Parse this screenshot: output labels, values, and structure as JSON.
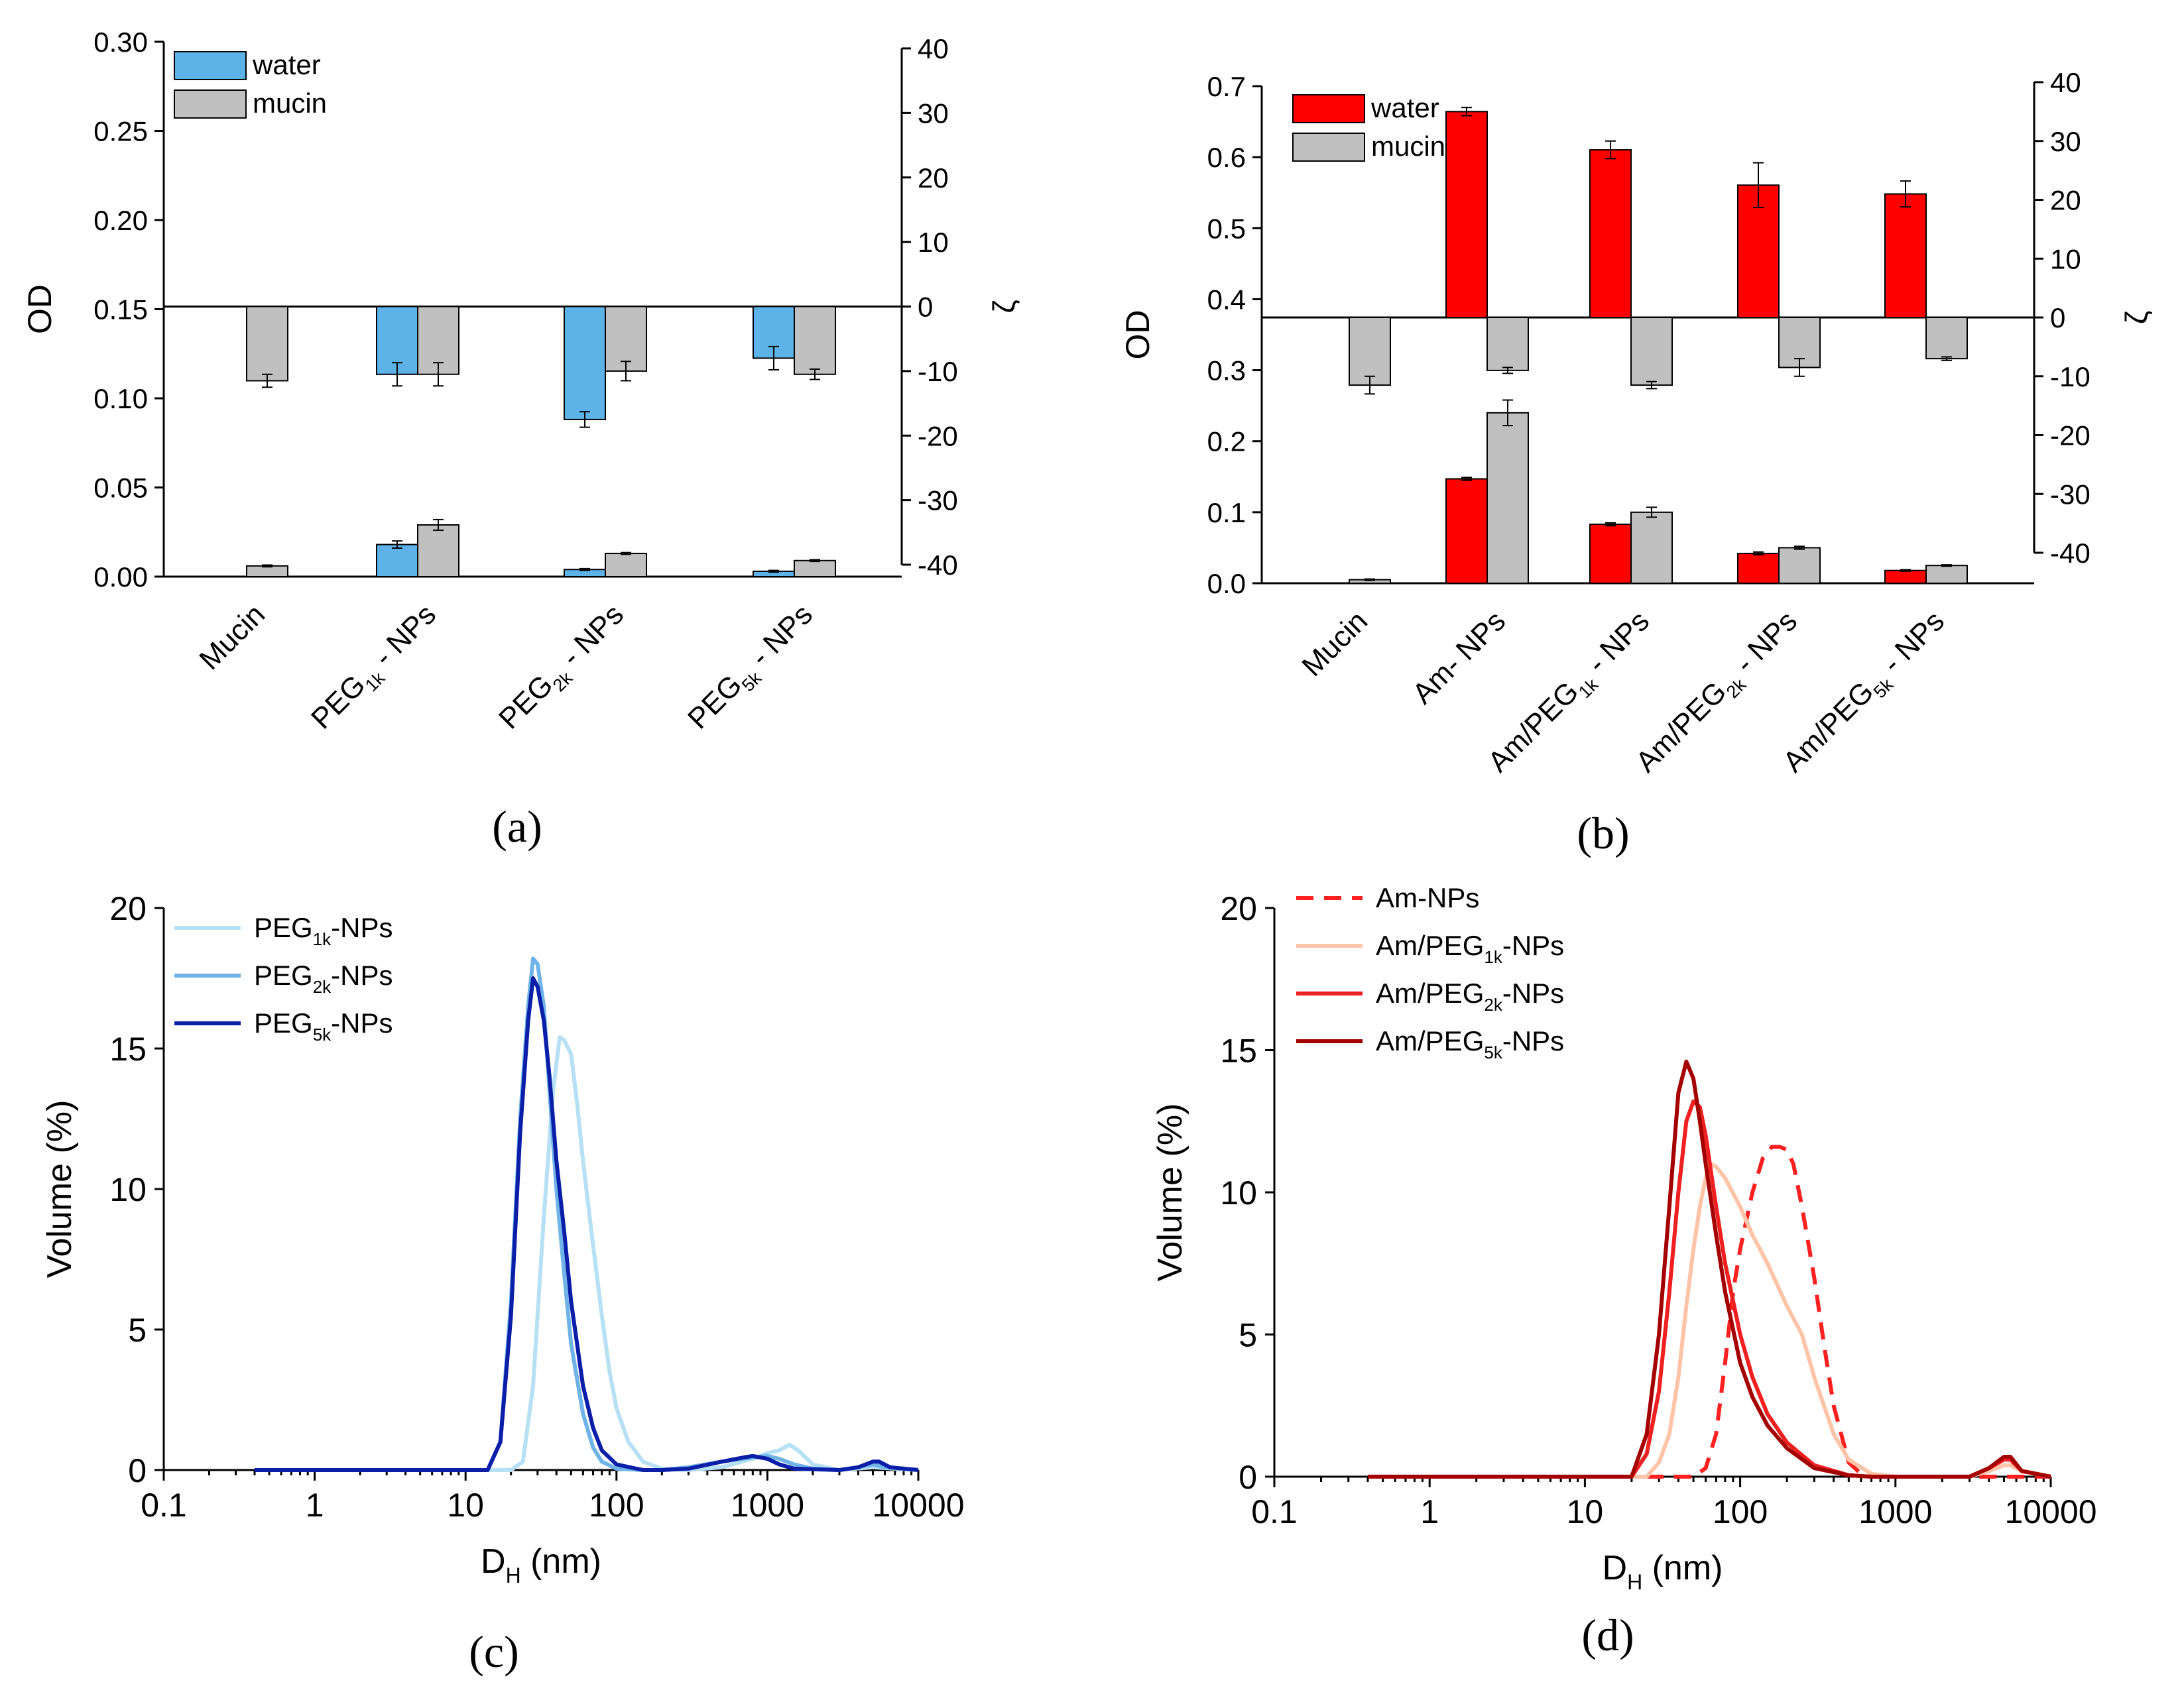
{
  "chart_data": [
    {
      "id": "a",
      "panel_label": "(a)",
      "type": "bar",
      "categories": [
        {
          "main": "Mucin",
          "sub": "",
          "post": ""
        },
        {
          "main": "PEG",
          "sub": "1k",
          "post": " - NPs"
        },
        {
          "main": "PEG",
          "sub": "2k",
          "post": " - NPs"
        },
        {
          "main": "PEG",
          "sub": "5k",
          "post": " - NPs"
        }
      ],
      "ylabel": "OD",
      "ylim": [
        0,
        0.3
      ],
      "yticks": [
        "0.00",
        "0.05",
        "0.10",
        "0.15",
        "0.20",
        "0.25",
        "0.30"
      ],
      "y2label": "ζ",
      "y2lim": [
        -40,
        40
      ],
      "y2ticks": [
        "-40",
        "-30",
        "-20",
        "-10",
        "0",
        "10",
        "20",
        "30",
        "40"
      ],
      "legend": {
        "position": "top-left",
        "entries": [
          "water",
          "mucin"
        ]
      },
      "colors": {
        "water": "#5db3e8",
        "mucin": "#c0c0c0"
      },
      "series_od": [
        {
          "name": "water",
          "values": [
            null,
            0.018,
            0.004,
            0.003
          ],
          "errors": [
            null,
            0.002,
            0.0005,
            0.0005
          ]
        },
        {
          "name": "mucin",
          "values": [
            0.006,
            0.029,
            0.013,
            0.009
          ],
          "errors": [
            0.0005,
            0.003,
            0.0005,
            0.0005
          ]
        }
      ],
      "series_zeta": [
        {
          "name": "water",
          "values": [
            null,
            -10.5,
            -17.5,
            -8
          ],
          "errors": [
            null,
            1.8,
            1.2,
            1.8
          ]
        },
        {
          "name": "mucin",
          "values": [
            -11.5,
            -10.5,
            -10,
            -10.5
          ],
          "errors": [
            1,
            1.8,
            1.5,
            0.8
          ]
        }
      ]
    },
    {
      "id": "b",
      "panel_label": "(b)",
      "type": "bar",
      "categories": [
        {
          "main": "Mucin",
          "sub": "",
          "post": ""
        },
        {
          "main": "Am- NPs",
          "sub": "",
          "post": ""
        },
        {
          "main": "Am/PEG",
          "sub": "1k",
          "post": " - NPs"
        },
        {
          "main": "Am/PEG",
          "sub": "2k",
          "post": " - NPs"
        },
        {
          "main": "Am/PEG",
          "sub": "5k",
          "post": " - NPs"
        }
      ],
      "ylabel": "OD",
      "ylim": [
        0,
        0.7
      ],
      "yticks": [
        "0.0",
        "0.1",
        "0.2",
        "0.3",
        "0.4",
        "0.5",
        "0.6",
        "0.7"
      ],
      "y2label": "ζ",
      "y2lim": [
        -40,
        40
      ],
      "y2ticks": [
        "-40",
        "-30",
        "-20",
        "-10",
        "0",
        "10",
        "20",
        "30",
        "40"
      ],
      "legend": {
        "position": "top-left",
        "entries": [
          "water",
          "mucin"
        ]
      },
      "colors": {
        "water": "#ff0000",
        "mucin": "#c0c0c0"
      },
      "series_od": [
        {
          "name": "water",
          "values": [
            null,
            0.147,
            0.083,
            0.042,
            0.018
          ],
          "errors": [
            null,
            0.002,
            0.002,
            0.002,
            0.001
          ]
        },
        {
          "name": "mucin",
          "values": [
            0.005,
            0.24,
            0.1,
            0.05,
            0.025
          ],
          "errors": [
            0.001,
            0.018,
            0.007,
            0.002,
            0.001
          ]
        }
      ],
      "series_zeta": [
        {
          "name": "water",
          "values": [
            null,
            35,
            28.5,
            22.5,
            21
          ],
          "errors": [
            null,
            0.7,
            1.5,
            3.8,
            2.2
          ]
        },
        {
          "name": "mucin",
          "values": [
            -11.5,
            -9,
            -11.5,
            -8.5,
            -7
          ],
          "errors": [
            1.5,
            0.5,
            0.6,
            1.5,
            0.3
          ]
        }
      ]
    },
    {
      "id": "c",
      "panel_label": "(c)",
      "type": "line",
      "xscale": "log",
      "xlim": [
        0.1,
        10000
      ],
      "xticks": [
        "0.1",
        "1",
        "10",
        "100",
        "1000",
        "10000"
      ],
      "xlabel": {
        "main": "D",
        "sub": "H",
        "post": " (nm)"
      },
      "ylabel": "Volume (%)",
      "ylim": [
        0,
        20
      ],
      "yticks": [
        "0",
        "5",
        "10",
        "15",
        "20"
      ],
      "legend": {
        "position": "top-left"
      },
      "series": [
        {
          "name": {
            "main": "PEG",
            "sub": "1k",
            "post": "-NPs"
          },
          "color": "#b8e0f4",
          "dash": false,
          "x": [
            0.4,
            20,
            24,
            28,
            33,
            38,
            42,
            45,
            50,
            55,
            60,
            70,
            80,
            90,
            100,
            120,
            150,
            200,
            300,
            500,
            800,
            1000,
            1200,
            1400,
            1600,
            2000,
            3000,
            5000,
            7000,
            10000
          ],
          "y": [
            0,
            0,
            0.3,
            3,
            9,
            13.5,
            15.4,
            15.3,
            14.8,
            13,
            11,
            8,
            5.5,
            3.5,
            2.2,
            1,
            0.3,
            0.05,
            0,
            0.1,
            0.4,
            0.6,
            0.7,
            0.9,
            0.7,
            0.2,
            0,
            0.1,
            0.05,
            0
          ]
        },
        {
          "name": {
            "main": "PEG",
            "sub": "2k",
            "post": "-NPs"
          },
          "color": "#6fb3e8",
          "dash": false,
          "x": [
            0.4,
            14,
            17,
            20,
            23,
            26,
            28,
            30,
            33,
            36,
            40,
            45,
            50,
            60,
            70,
            80,
            100,
            150,
            200,
            300,
            500,
            800,
            1000,
            1200,
            1500,
            2000,
            3000,
            4000,
            5000,
            6000,
            10000
          ],
          "y": [
            0,
            0,
            1,
            6,
            12.5,
            16.5,
            18.2,
            18,
            16.5,
            13.5,
            10,
            7,
            4.5,
            2,
            0.8,
            0.3,
            0.05,
            0,
            0,
            0.1,
            0.3,
            0.45,
            0.5,
            0.4,
            0.2,
            0.05,
            0,
            0.1,
            0.2,
            0.1,
            0
          ]
        },
        {
          "name": {
            "main": "PEG",
            "sub": "5k",
            "post": "-NPs"
          },
          "color": "#0a1ea8",
          "dash": false,
          "x": [
            0.4,
            14,
            17,
            20,
            23,
            26,
            28,
            30,
            33,
            36,
            40,
            45,
            50,
            60,
            70,
            80,
            100,
            150,
            200,
            300,
            500,
            700,
            800,
            1000,
            1200,
            1500,
            3000,
            4000,
            5000,
            5500,
            6500,
            10000
          ],
          "y": [
            0,
            0,
            1,
            5.5,
            12,
            16,
            17.5,
            17.2,
            16,
            14,
            11,
            8.5,
            6,
            3,
            1.5,
            0.7,
            0.2,
            0,
            0,
            0.05,
            0.3,
            0.45,
            0.5,
            0.4,
            0.2,
            0.05,
            0,
            0.1,
            0.3,
            0.3,
            0.1,
            0
          ]
        }
      ]
    },
    {
      "id": "d",
      "panel_label": "(d)",
      "type": "line",
      "xscale": "log",
      "xlim": [
        0.1,
        10000
      ],
      "xticks": [
        "0.1",
        "1",
        "10",
        "100",
        "1000",
        "10000"
      ],
      "xlabel": {
        "main": "D",
        "sub": "H",
        "post": " (nm)"
      },
      "ylabel": "Volume (%)",
      "ylim": [
        0,
        20
      ],
      "yticks": [
        "0",
        "5",
        "10",
        "15",
        "20"
      ],
      "legend": {
        "position": "top-left"
      },
      "series": [
        {
          "name": {
            "main": "Am-NPs",
            "sub": "",
            "post": ""
          },
          "color": "#ff2020",
          "dash": true,
          "x": [
            0.4,
            50,
            60,
            70,
            80,
            90,
            100,
            120,
            140,
            160,
            180,
            200,
            220,
            250,
            300,
            350,
            400,
            500,
            600,
            700,
            1000,
            10000
          ],
          "y": [
            0,
            0,
            0.3,
            1.5,
            4,
            6.5,
            8,
            10,
            11.2,
            11.6,
            11.6,
            11.5,
            11,
            9.5,
            7,
            4.5,
            2.5,
            0.5,
            0.1,
            0,
            0,
            0
          ]
        },
        {
          "name": {
            "main": "Am/PEG",
            "sub": "1k",
            "post": "-NPs"
          },
          "color": "#ffc4a8",
          "dash": false,
          "x": [
            0.4,
            25,
            30,
            35,
            40,
            45,
            50,
            55,
            60,
            65,
            70,
            80,
            100,
            120,
            150,
            200,
            250,
            300,
            400,
            500,
            700,
            1000,
            3000,
            4000,
            5000,
            5500,
            6500,
            10000
          ],
          "y": [
            0,
            0,
            0.5,
            1.5,
            3.5,
            6,
            8,
            9.5,
            10.5,
            11,
            10.9,
            10.5,
            9.5,
            8.5,
            7.5,
            6,
            5,
            3.5,
            1.5,
            0.6,
            0.1,
            0,
            0,
            0.2,
            0.4,
            0.4,
            0.2,
            0
          ]
        },
        {
          "name": {
            "main": "Am/PEG",
            "sub": "2k",
            "post": "-NPs"
          },
          "color": "#f02020",
          "dash": false,
          "x": [
            0.4,
            20,
            25,
            30,
            35,
            40,
            45,
            50,
            55,
            60,
            70,
            80,
            100,
            120,
            150,
            200,
            300,
            500,
            700,
            1000,
            3000,
            4000,
            5000,
            5500,
            6500,
            10000
          ],
          "y": [
            0,
            0,
            0.8,
            3,
            6.5,
            10,
            12.5,
            13.2,
            13,
            12,
            9.5,
            7.5,
            5,
            3.5,
            2.2,
            1.2,
            0.4,
            0.05,
            0,
            0,
            0,
            0.3,
            0.6,
            0.6,
            0.2,
            0
          ]
        },
        {
          "name": {
            "main": "Am/PEG",
            "sub": "5k",
            "post": "-NPs"
          },
          "color": "#a50000",
          "dash": false,
          "x": [
            0.4,
            20,
            25,
            30,
            35,
            40,
            45,
            50,
            55,
            60,
            70,
            80,
            100,
            120,
            150,
            200,
            300,
            500,
            700,
            1000,
            3000,
            4000,
            5000,
            5500,
            6500,
            10000
          ],
          "y": [
            0,
            0,
            1.5,
            5,
            9.5,
            13.5,
            14.6,
            14,
            12.5,
            11,
            8.5,
            6.5,
            4,
            2.8,
            1.8,
            1,
            0.3,
            0.05,
            0,
            0,
            0,
            0.3,
            0.7,
            0.7,
            0.2,
            0
          ]
        }
      ]
    }
  ]
}
